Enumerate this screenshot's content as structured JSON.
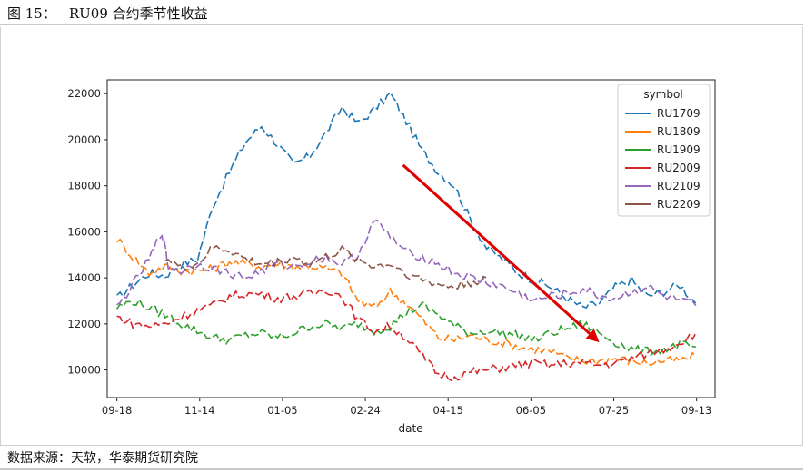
{
  "header": {
    "figure_no": "图 15：",
    "title": "RU09 合约季节性收益"
  },
  "footer": {
    "source": "数据来源：天软，华泰期货研究院"
  },
  "colors": {
    "RU1709": "#1f77b4",
    "RU1809": "#ff7f0e",
    "RU1909": "#2ca02c",
    "RU2009": "#d62728",
    "RU2109": "#9467bd",
    "RU2209": "#8c564b",
    "arrow": "#e00000"
  },
  "chart_data": {
    "type": "line",
    "xlabel": "date",
    "ylabel": "",
    "ylim": [
      8800,
      22600
    ],
    "grid": false,
    "legend_title": "symbol",
    "legend_position": "top-right",
    "x_ticks": [
      "09-18",
      "11-14",
      "01-05",
      "02-24",
      "04-15",
      "06-05",
      "07-25",
      "09-13"
    ],
    "y_ticks": [
      10000,
      12000,
      14000,
      16000,
      18000,
      20000,
      22000
    ],
    "x_domain_note": "day index, 0 = 09-18, ticks every ~50 days",
    "x": [
      0,
      10,
      20,
      30,
      40,
      50,
      60,
      70,
      80,
      90,
      100,
      110,
      120,
      130,
      140,
      150,
      160,
      170,
      180,
      190,
      200,
      210,
      220,
      230,
      240,
      250,
      260,
      270,
      280,
      290,
      300,
      310,
      320,
      330,
      340,
      350,
      360
    ],
    "series": [
      {
        "name": "RU1709",
        "values": [
          13100,
          13700,
          14200,
          14100,
          14600,
          14800,
          17200,
          18600,
          19900,
          20600,
          19800,
          18900,
          19300,
          20300,
          21400,
          20700,
          21300,
          22000,
          20800,
          19500,
          18600,
          18000,
          16500,
          15300,
          14800,
          14200,
          13900,
          13600,
          13100,
          12700,
          12900,
          13600,
          13900,
          13200,
          13400,
          13700,
          12900
        ]
      },
      {
        "name": "RU1809",
        "values": [
          15700,
          14900,
          14200,
          14500,
          14300,
          14300,
          14400,
          14700,
          14600,
          14500,
          14600,
          14500,
          14500,
          14400,
          14200,
          13000,
          12700,
          13400,
          12900,
          12200,
          11400,
          11300,
          11500,
          11300,
          11200,
          11000,
          10900,
          10800,
          10500,
          10400,
          10400,
          10500,
          10400,
          10300,
          10400,
          10400,
          10600
        ]
      },
      {
        "name": "RU1909",
        "values": [
          12700,
          13000,
          12700,
          12400,
          12000,
          11700,
          11400,
          11300,
          11500,
          11600,
          11400,
          11600,
          11900,
          12000,
          11800,
          12000,
          11700,
          11900,
          12500,
          12800,
          12400,
          11900,
          11600,
          11700,
          11600,
          11500,
          11300,
          11600,
          11800,
          12000,
          11600,
          11200,
          10900,
          10800,
          10900,
          11100,
          11000
        ]
      },
      {
        "name": "RU2009",
        "values": [
          12300,
          12000,
          11900,
          12000,
          12300,
          12600,
          12800,
          13200,
          13300,
          13300,
          13100,
          13200,
          13300,
          13500,
          13200,
          12200,
          11700,
          11900,
          11400,
          10600,
          9800,
          9700,
          9900,
          10000,
          10100,
          10200,
          10300,
          10200,
          10300,
          10300,
          10200,
          10300,
          10500,
          10700,
          10900,
          11200,
          11600
        ]
      },
      {
        "name": "RU2109",
        "values": null,
        "segments": [
          [
            0,
            12700
          ],
          [
            10,
            13700
          ],
          [
            20,
            14800
          ],
          [
            28,
            16000
          ],
          [
            32,
            14500
          ],
          [
            40,
            14300
          ],
          [
            50,
            14600
          ],
          [
            60,
            14400
          ],
          [
            70,
            14200
          ],
          [
            80,
            14000
          ],
          [
            90,
            14300
          ],
          [
            100,
            14600
          ],
          [
            110,
            14500
          ],
          [
            120,
            14700
          ],
          [
            130,
            14900
          ],
          [
            140,
            14600
          ],
          [
            150,
            15000
          ],
          [
            160,
            16500
          ],
          [
            170,
            15800
          ],
          [
            180,
            15100
          ],
          [
            190,
            14900
          ],
          [
            200,
            14600
          ],
          [
            210,
            14200
          ],
          [
            220,
            14000
          ],
          [
            230,
            13800
          ],
          [
            240,
            13600
          ],
          [
            250,
            13300
          ],
          [
            260,
            13000
          ],
          [
            270,
            13200
          ],
          [
            280,
            13300
          ],
          [
            290,
            13500
          ],
          [
            300,
            13200
          ],
          [
            310,
            13100
          ],
          [
            320,
            13400
          ],
          [
            330,
            13600
          ],
          [
            340,
            13200
          ],
          [
            350,
            13000
          ],
          [
            360,
            12800
          ]
        ]
      },
      {
        "name": "RU2209",
        "values": null,
        "segments": [
          [
            30,
            14900
          ],
          [
            40,
            14400
          ],
          [
            50,
            14600
          ],
          [
            60,
            15300
          ],
          [
            70,
            15200
          ],
          [
            80,
            14800
          ],
          [
            90,
            14600
          ],
          [
            100,
            14700
          ],
          [
            110,
            14900
          ],
          [
            120,
            14600
          ],
          [
            130,
            14900
          ],
          [
            140,
            15200
          ],
          [
            150,
            14800
          ],
          [
            160,
            14500
          ],
          [
            170,
            14600
          ],
          [
            180,
            14200
          ],
          [
            190,
            13900
          ],
          [
            200,
            13700
          ],
          [
            210,
            13600
          ],
          [
            220,
            13800
          ],
          [
            230,
            14000
          ]
        ]
      }
    ],
    "annotations": [
      {
        "type": "arrow",
        "from": [
          178,
          18900
        ],
        "to": [
          300,
          11200
        ]
      }
    ]
  }
}
